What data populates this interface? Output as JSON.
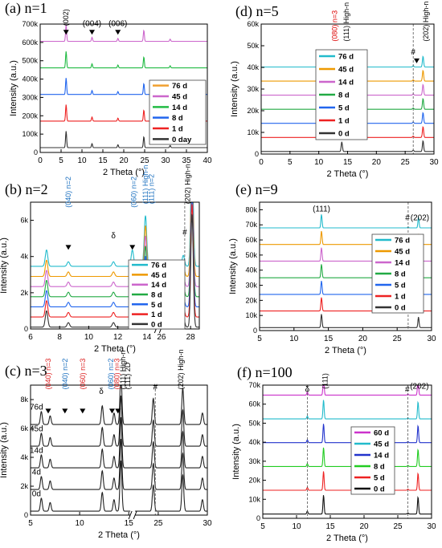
{
  "chart_data": [
    {
      "id": "a",
      "type": "line",
      "title": "(a) n=1",
      "xlabel": "2 Theta (°)",
      "ylabel": "Intensity (a.u.)",
      "xlim": [
        0,
        40
      ],
      "ylim": [
        0,
        700000
      ],
      "xticks": [
        "0",
        "5",
        "10",
        "15",
        "20",
        "25",
        "30",
        "35",
        "40"
      ],
      "yticks": [
        "0",
        "100k",
        "200k",
        "300k",
        "400k",
        "500k",
        "600k",
        "700k"
      ],
      "offset": 145000,
      "peaks": [
        {
          "x": 6.2,
          "h": 90000,
          "w": 0.18
        },
        {
          "x": 12.4,
          "h": 22000,
          "w": 0.18
        },
        {
          "x": 18.6,
          "h": 16000,
          "w": 0.18
        },
        {
          "x": 24.8,
          "h": 60000,
          "w": 0.18
        },
        {
          "x": 31.1,
          "h": 12000,
          "w": 0.18
        }
      ],
      "annotations": [
        {
          "text": "(002)",
          "x": 6.2,
          "y": 690000,
          "rotate": true,
          "color": "#000000"
        },
        {
          "text": "(004)",
          "x": 12.4,
          "y": 690000,
          "rotate": false,
          "color": "#000000"
        },
        {
          "text": "(006)",
          "x": 18.6,
          "y": 690000,
          "rotate": false,
          "color": "#000000"
        }
      ],
      "markers": [
        {
          "x": 6.2,
          "y": 655000
        },
        {
          "x": 12.4,
          "y": 655000
        },
        {
          "x": 18.6,
          "y": 655000
        }
      ],
      "dashed": [],
      "break": false,
      "legend": {
        "pos": "right",
        "labels": [
          "76 d",
          "45 d",
          "14 d",
          "8 d",
          "1 d",
          "0 day"
        ]
      },
      "series": [
        {
          "name": "76 d",
          "color": "#f0a030"
        },
        {
          "name": "45 d",
          "color": "#cc66cc"
        },
        {
          "name": "14 d",
          "color": "#22bb44"
        },
        {
          "name": "8 d",
          "color": "#2266ee"
        },
        {
          "name": "1 d",
          "color": "#ee2222"
        },
        {
          "name": "0 day",
          "color": "#333333"
        }
      ]
    },
    {
      "id": "d",
      "type": "line",
      "title": "(d) n=5",
      "xlabel": "2 Theta (°)",
      "ylabel": "Intensity (a.u.)",
      "xlim": [
        0,
        30
      ],
      "ylim": [
        0,
        60000
      ],
      "xticks": [
        "0",
        "5",
        "10",
        "15",
        "20",
        "25",
        "30"
      ],
      "yticks": [
        "0",
        "10k",
        "20k",
        "30k",
        "40k",
        "50k",
        "60k"
      ],
      "offset": 6500,
      "peaks": [
        {
          "x": 14.0,
          "h": 4500,
          "w": 0.15
        },
        {
          "x": 28.1,
          "h": 5000,
          "w": 0.15
        },
        {
          "x": 26.4,
          "h": 600,
          "w": 0.15
        }
      ],
      "annotations": [
        {
          "text": "(080) n=3",
          "x": 12.8,
          "y": 52000,
          "rotate": true,
          "color": "#dd0000"
        },
        {
          "text": "(111) High-n",
          "x": 14.8,
          "y": 52000,
          "rotate": true,
          "color": "#000000"
        },
        {
          "text": "#",
          "x": 26.4,
          "y": 46000,
          "rotate": false,
          "color": "#000000"
        },
        {
          "text": "(202) High-n",
          "x": 28.6,
          "y": 52000,
          "rotate": true,
          "color": "#000000"
        }
      ],
      "markers": [
        {
          "x": 13.2,
          "y": 43000
        },
        {
          "x": 27.0,
          "y": 43000
        }
      ],
      "dashed": [
        26.4
      ],
      "break": false,
      "legend": {
        "pos": "right",
        "labels": [
          "76 d",
          "45 d",
          "14 d",
          "8 d",
          "5 d",
          "1 d",
          "0 d"
        ]
      },
      "series": [
        {
          "name": "76 d",
          "color": "#22bbcc"
        },
        {
          "name": "45 d",
          "color": "#ee9900"
        },
        {
          "name": "14 d",
          "color": "#cc66cc"
        },
        {
          "name": "8 d",
          "color": "#22aa44"
        },
        {
          "name": "5 d",
          "color": "#2266ee"
        },
        {
          "name": "1 d",
          "color": "#ee2222"
        },
        {
          "name": "0 d",
          "color": "#333333"
        }
      ]
    },
    {
      "id": "b",
      "type": "line",
      "title": "(b) n=2",
      "xlabel": "2 Theta (°)",
      "ylabel": "Intensity (a.u.)",
      "xlim": [
        6,
        28.6
      ],
      "ylim": [
        0,
        7000
      ],
      "xticks": [
        "6",
        "8",
        "10",
        "12",
        "14",
        "26",
        "28"
      ],
      "yticks": [
        "0",
        "2k",
        "4k",
        "6k"
      ],
      "offset": 560,
      "peaks": [
        {
          "x": 7.1,
          "h": 900,
          "w": 0.12
        },
        {
          "x": 8.6,
          "h": 250,
          "w": 0.12
        },
        {
          "x": 11.7,
          "h": 250,
          "w": 0.12
        },
        {
          "x": 13.0,
          "h": 900,
          "w": 0.12
        },
        {
          "x": 13.9,
          "h": 2800,
          "w": 0.12
        },
        {
          "x": 27.5,
          "h": 600,
          "w": 0.12
        },
        {
          "x": 28.1,
          "h": 6200,
          "w": 0.12
        }
      ],
      "annotations": [
        {
          "text": "(040) n=2",
          "x": 8.6,
          "y": 6700,
          "rotate": true,
          "color": "#1a6fbf"
        },
        {
          "text": "δ",
          "x": 11.7,
          "y": 5000,
          "rotate": false,
          "color": "#000000"
        },
        {
          "text": "(060) n=2",
          "x": 13.1,
          "y": 6700,
          "rotate": true,
          "color": "#1a6fbf"
        },
        {
          "text": "(111) High-n",
          "x": 13.9,
          "y": 6900,
          "rotate": true,
          "color": "#1a6fbf"
        },
        {
          "text": "(111) n=2",
          "x": 14.3,
          "y": 6900,
          "rotate": true,
          "color": "#1a6fbf"
        },
        {
          "text": "#",
          "x": 27.6,
          "y": 5200,
          "rotate": false,
          "color": "#000000"
        },
        {
          "text": "(202) High-n",
          "x": 27.8,
          "y": 6900,
          "rotate": true,
          "color": "#000000"
        }
      ],
      "markers": [
        {
          "x": 8.6,
          "y": 4500
        },
        {
          "x": 13.0,
          "y": 4500
        }
      ],
      "dashed": [
        27.6
      ],
      "break": true,
      "breakAt": 14.8,
      "breakTo": 25.8,
      "legend": {
        "pos": "right",
        "labels": [
          "76 d",
          "45 d",
          "14 d",
          "8 d",
          "5 d",
          "1 d",
          "0 d"
        ]
      },
      "series": [
        {
          "name": "76 d",
          "color": "#22bbcc"
        },
        {
          "name": "45 d",
          "color": "#ee9900"
        },
        {
          "name": "14 d",
          "color": "#cc66cc"
        },
        {
          "name": "8 d",
          "color": "#22aa44"
        },
        {
          "name": "5 d",
          "color": "#2266ee"
        },
        {
          "name": "1 d",
          "color": "#ee2222"
        },
        {
          "name": "0 d",
          "color": "#333333"
        }
      ]
    },
    {
      "id": "e",
      "type": "line",
      "title": "(e) n=9",
      "xlabel": "2 Theta (°)",
      "ylabel": "Intensity (a.u.)",
      "xlim": [
        5,
        30
      ],
      "ylim": [
        0,
        85000
      ],
      "xticks": [
        "5",
        "10",
        "15",
        "20",
        "25",
        "30"
      ],
      "yticks": [
        "0",
        "10k",
        "20k",
        "30k",
        "40k",
        "50k",
        "60k",
        "70k",
        "80k"
      ],
      "offset": 11000,
      "peaks": [
        {
          "x": 14.0,
          "h": 9000,
          "w": 0.12
        },
        {
          "x": 28.1,
          "h": 7000,
          "w": 0.12
        },
        {
          "x": 26.6,
          "h": 500,
          "w": 0.12
        }
      ],
      "annotations": [
        {
          "text": "(111)",
          "x": 14.0,
          "y": 79000,
          "rotate": false,
          "color": "#000000"
        },
        {
          "text": "#",
          "x": 26.5,
          "y": 73000,
          "rotate": false,
          "color": "#000000"
        },
        {
          "text": "(202)",
          "x": 28.3,
          "y": 73000,
          "rotate": false,
          "color": "#000000"
        }
      ],
      "markers": [],
      "dashed": [
        26.6
      ],
      "break": false,
      "legend": {
        "pos": "right",
        "labels": [
          "76 d",
          "45 d",
          "14 d",
          "8 d",
          "5 d",
          "1 d",
          "0 d"
        ]
      },
      "series": [
        {
          "name": "76 d",
          "color": "#22bbcc"
        },
        {
          "name": "45 d",
          "color": "#ee9900"
        },
        {
          "name": "14 d",
          "color": "#cc66cc"
        },
        {
          "name": "8 d",
          "color": "#22aa44"
        },
        {
          "name": "5 d",
          "color": "#2266ee"
        },
        {
          "name": "1 d",
          "color": "#ee2222"
        },
        {
          "name": "0 d",
          "color": "#333333"
        }
      ]
    },
    {
      "id": "c",
      "type": "line",
      "title": "(c) n=3",
      "xlabel": "2 Theta (°)",
      "ylabel": "Intensity (a.u.)",
      "xlim": [
        5,
        30
      ],
      "ylim": [
        0,
        9000
      ],
      "xticks": [
        "5",
        "10",
        "15",
        "20",
        "25",
        "30"
      ],
      "yticks": [
        "0",
        "2k",
        "4k",
        "6k",
        "8k"
      ],
      "offset": 1500,
      "peaks": [
        {
          "x": 6.1,
          "h": 900,
          "w": 0.14
        },
        {
          "x": 7.0,
          "h": 600,
          "w": 0.14
        },
        {
          "x": 12.3,
          "h": 1300,
          "w": 0.14
        },
        {
          "x": 13.5,
          "h": 800,
          "w": 0.14
        },
        {
          "x": 14.2,
          "h": 3500,
          "w": 0.14
        },
        {
          "x": 24.5,
          "h": 1800,
          "w": 0.14
        },
        {
          "x": 27.5,
          "h": 2500,
          "w": 0.14
        },
        {
          "x": 29.5,
          "h": 800,
          "w": 0.14
        }
      ],
      "annotations": [
        {
          "text": "76d",
          "x": 5.6,
          "y": 7300,
          "rotate": false,
          "color": "#000000"
        },
        {
          "text": "45d",
          "x": 5.6,
          "y": 5800,
          "rotate": false,
          "color": "#000000"
        },
        {
          "text": "14d",
          "x": 5.6,
          "y": 4300,
          "rotate": false,
          "color": "#000000"
        },
        {
          "text": "4d",
          "x": 5.6,
          "y": 2800,
          "rotate": false,
          "color": "#000000"
        },
        {
          "text": "0d",
          "x": 5.6,
          "y": 1300,
          "rotate": false,
          "color": "#000000"
        },
        {
          "text": "(040) n=3",
          "x": 6.8,
          "y": 8700,
          "rotate": true,
          "color": "#dd2222"
        },
        {
          "text": "(040) n=2",
          "x": 8.5,
          "y": 8700,
          "rotate": true,
          "color": "#1a6fbf"
        },
        {
          "text": "(060) n=3",
          "x": 10.3,
          "y": 8700,
          "rotate": true,
          "color": "#dd2222"
        },
        {
          "text": "δ",
          "x": 12.2,
          "y": 8400,
          "rotate": false,
          "color": "#000000"
        },
        {
          "text": "(060) n=2",
          "x": 13.2,
          "y": 8700,
          "rotate": true,
          "color": "#1a6fbf"
        },
        {
          "text": "(080) n=3",
          "x": 13.8,
          "y": 8700,
          "rotate": true,
          "color": "#dd2222"
        },
        {
          "text": "(111) High-n",
          "x": 14.4,
          "y": 8700,
          "rotate": true,
          "color": "#000000"
        },
        {
          "text": "(111) 2D",
          "x": 14.9,
          "y": 8700,
          "rotate": true,
          "color": "#000000"
        },
        {
          "text": "#",
          "x": 24.7,
          "y": 8700,
          "rotate": false,
          "color": "#000000"
        },
        {
          "text": "(202) High-n",
          "x": 27.3,
          "y": 8700,
          "rotate": true,
          "color": "#000000"
        }
      ],
      "markers": [
        {
          "x": 6.8,
          "y": 7200
        },
        {
          "x": 8.5,
          "y": 7200
        },
        {
          "x": 10.3,
          "y": 7200
        },
        {
          "x": 13.3,
          "y": 7200
        },
        {
          "x": 13.9,
          "y": 7200
        }
      ],
      "dashed": [
        24.7
      ],
      "break": true,
      "breakAt": 15.4,
      "breakTo": 22.4,
      "legend": null,
      "series": [
        {
          "name": "76d",
          "color": "#222222"
        },
        {
          "name": "45d",
          "color": "#222222"
        },
        {
          "name": "14d",
          "color": "#222222"
        },
        {
          "name": "4d",
          "color": "#222222"
        },
        {
          "name": "0d",
          "color": "#222222"
        }
      ]
    },
    {
      "id": "f",
      "type": "line",
      "title": "(f) n=100",
      "xlabel": "2 Theta (°)",
      "ylabel": "Intensity (a.u.)",
      "xlim": [
        5,
        30
      ],
      "ylim": [
        0,
        70000
      ],
      "xticks": [
        "5",
        "10",
        "15",
        "20",
        "25",
        "30"
      ],
      "yticks": [
        "0",
        "10k",
        "20k",
        "30k",
        "40k",
        "50k",
        "60k",
        "70k"
      ],
      "offset": 12500,
      "peaks": [
        {
          "x": 11.6,
          "h": 1500,
          "w": 0.12
        },
        {
          "x": 14.0,
          "h": 10000,
          "w": 0.12
        },
        {
          "x": 26.5,
          "h": 600,
          "w": 0.12
        },
        {
          "x": 28.0,
          "h": 9000,
          "w": 0.12
        }
      ],
      "annotations": [
        {
          "text": "δ",
          "x": 11.6,
          "y": 66500,
          "rotate": false,
          "color": "#000000"
        },
        {
          "text": "(111)",
          "x": 14.2,
          "y": 68000,
          "rotate": true,
          "color": "#000000"
        },
        {
          "text": "#",
          "x": 26.4,
          "y": 66500,
          "rotate": false,
          "color": "#000000"
        },
        {
          "text": "(202)",
          "x": 28.2,
          "y": 68000,
          "rotate": false,
          "color": "#000000"
        }
      ],
      "markers": [],
      "dashed": [
        11.6,
        26.5
      ],
      "break": false,
      "legend": {
        "pos": "center",
        "labels": [
          "60 d",
          "45 d",
          "14 d",
          "8 d",
          "5 d",
          "0 d"
        ]
      },
      "series": [
        {
          "name": "60 d",
          "color": "#cc33cc"
        },
        {
          "name": "45 d",
          "color": "#22bbcc"
        },
        {
          "name": "14 d",
          "color": "#2233cc"
        },
        {
          "name": "8 d",
          "color": "#22cc22"
        },
        {
          "name": "5 d",
          "color": "#ee2222"
        },
        {
          "name": "0 d",
          "color": "#111111"
        }
      ]
    }
  ]
}
